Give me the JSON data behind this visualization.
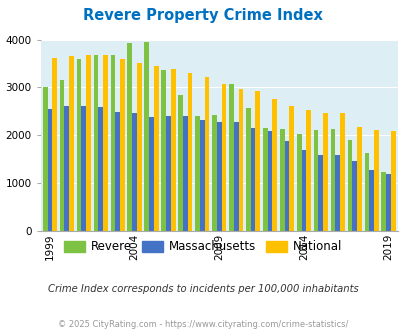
{
  "title": "Revere Property Crime Index",
  "years": [
    1999,
    2000,
    2001,
    2002,
    2003,
    2004,
    2005,
    2006,
    2007,
    2008,
    2009,
    2010,
    2011,
    2012,
    2013,
    2014,
    2015,
    2016,
    2017,
    2018,
    2019
  ],
  "revere": [
    3000,
    3150,
    3600,
    3670,
    3680,
    3920,
    3950,
    3370,
    2850,
    2400,
    2420,
    3080,
    2570,
    2150,
    2140,
    2020,
    2120,
    2140,
    1900,
    1630,
    1230
  ],
  "massachusetts": [
    2560,
    2620,
    2620,
    2590,
    2490,
    2460,
    2390,
    2410,
    2400,
    2320,
    2280,
    2280,
    2150,
    2080,
    1890,
    1700,
    1590,
    1580,
    1470,
    1270,
    1200
  ],
  "national": [
    3620,
    3660,
    3670,
    3680,
    3600,
    3520,
    3450,
    3380,
    3310,
    3220,
    3070,
    2960,
    2920,
    2760,
    2620,
    2520,
    2470,
    2460,
    2180,
    2120,
    2100
  ],
  "revere_color": "#7dc242",
  "mass_color": "#4472c4",
  "national_color": "#ffc000",
  "bg_color": "#ddeef4",
  "title_color": "#0070c0",
  "subtitle": "Crime Index corresponds to incidents per 100,000 inhabitants",
  "footer": "© 2025 CityRating.com - https://www.cityrating.com/crime-statistics/",
  "ylim": [
    0,
    4000
  ],
  "yticks": [
    0,
    1000,
    2000,
    3000,
    4000
  ],
  "xtick_years": [
    1999,
    2004,
    2009,
    2014,
    2019
  ]
}
